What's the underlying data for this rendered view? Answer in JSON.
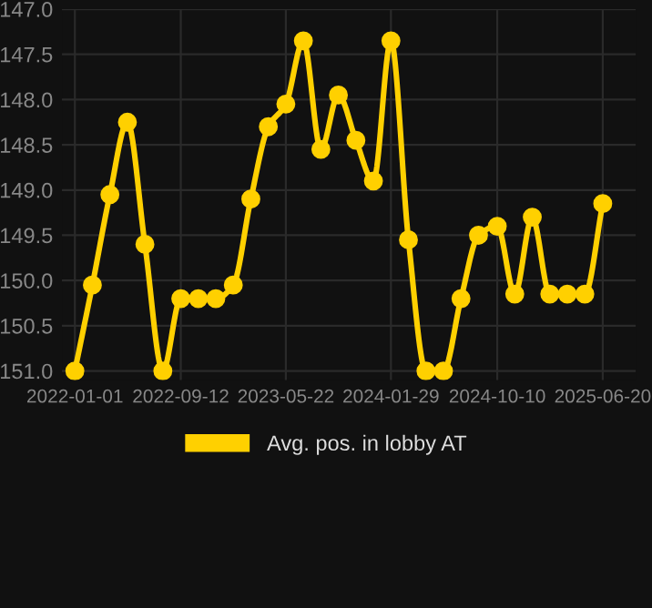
{
  "chart_data": {
    "type": "line",
    "x": [
      "2022-01-01",
      "2022-02-12",
      "2022-03-26",
      "2022-05-07",
      "2022-06-18",
      "2022-07-31",
      "2022-09-12",
      "2022-10-24",
      "2022-12-05",
      "2023-01-16",
      "2023-02-27",
      "2023-04-10",
      "2023-05-22",
      "2023-07-03",
      "2023-08-14",
      "2023-09-25",
      "2023-11-06",
      "2023-12-18",
      "2024-01-29",
      "2024-03-11",
      "2024-04-22",
      "2024-06-03",
      "2024-07-15",
      "2024-08-26",
      "2024-10-10",
      "2024-11-21",
      "2025-01-02",
      "2025-02-13",
      "2025-03-27",
      "2025-05-08",
      "2025-06-20"
    ],
    "series": [
      {
        "name": "Avg. pos. in lobby AT",
        "color": "#ffd000",
        "values": [
          151.0,
          150.05,
          149.05,
          148.25,
          149.6,
          151.0,
          150.2,
          150.2,
          150.2,
          150.05,
          149.1,
          148.3,
          148.05,
          147.35,
          148.55,
          147.95,
          148.45,
          148.9,
          147.35,
          149.55,
          151.0,
          151.0,
          150.2,
          149.5,
          149.4,
          150.15,
          149.3,
          150.15,
          150.15,
          150.15,
          149.15
        ]
      }
    ],
    "xlim": [
      "2021-12-01",
      "2025-09-07"
    ],
    "xticks": [
      {
        "value": "2022-01-01",
        "label": "2022-01-01"
      },
      {
        "value": "2022-09-12",
        "label": "2022-09-12"
      },
      {
        "value": "2023-05-22",
        "label": "2023-05-22"
      },
      {
        "value": "2024-01-29",
        "label": "2024-01-29"
      },
      {
        "value": "2024-10-10",
        "label": "2024-10-10"
      },
      {
        "value": "2025-06-20",
        "label": "2025-06-20"
      }
    ],
    "ylim": [
      151.1,
      147.0
    ],
    "yticks": [
      {
        "value": 147.0,
        "label": "147.0"
      },
      {
        "value": 147.5,
        "label": "147.5"
      },
      {
        "value": 148.0,
        "label": "148.0"
      },
      {
        "value": 148.5,
        "label": "148.5"
      },
      {
        "value": 149.0,
        "label": "149.0"
      },
      {
        "value": 149.5,
        "label": "149.5"
      },
      {
        "value": 150.0,
        "label": "150.0"
      },
      {
        "value": 150.5,
        "label": "150.5"
      },
      {
        "value": 151.0,
        "label": "151.0"
      }
    ],
    "grid": true,
    "legend": "bottom",
    "marker": "circle",
    "line_style": "solid"
  }
}
